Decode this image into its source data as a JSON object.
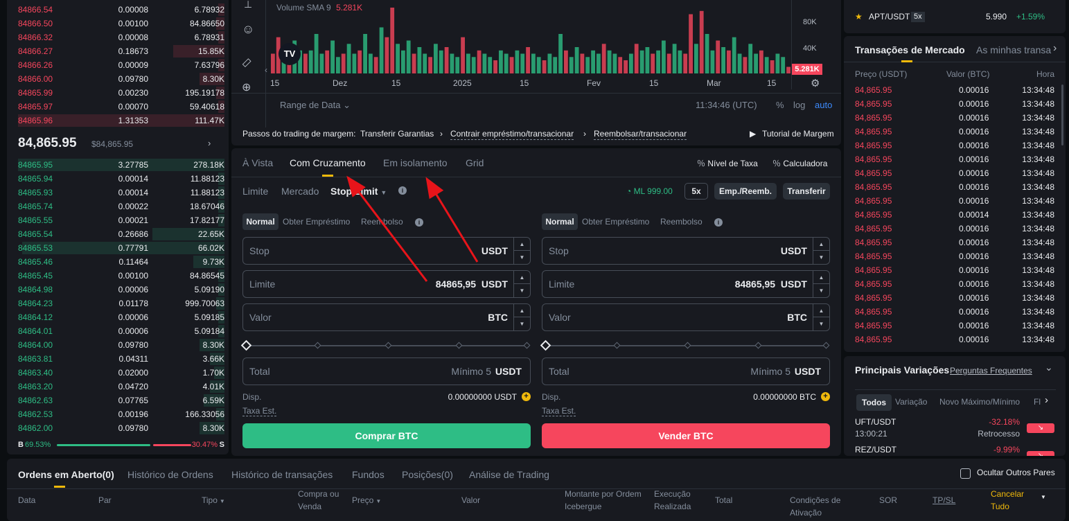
{
  "orderbook": {
    "asks": [
      {
        "price": "84866.54",
        "amount": "0.00008",
        "total": "6.78932",
        "depth": 0.03
      },
      {
        "price": "84866.50",
        "amount": "0.00100",
        "total": "84.86650",
        "depth": 0.04
      },
      {
        "price": "84866.32",
        "amount": "0.00008",
        "total": "6.78931",
        "depth": 0.03
      },
      {
        "price": "84866.27",
        "amount": "0.18673",
        "total": "15.85K",
        "depth": 0.25
      },
      {
        "price": "84866.26",
        "amount": "0.00009",
        "total": "7.63796",
        "depth": 0.03
      },
      {
        "price": "84866.00",
        "amount": "0.09780",
        "total": "8.30K",
        "depth": 0.12
      },
      {
        "price": "84865.99",
        "amount": "0.00230",
        "total": "195.19178",
        "depth": 0.04
      },
      {
        "price": "84865.97",
        "amount": "0.00070",
        "total": "59.40618",
        "depth": 0.03
      },
      {
        "price": "84865.96",
        "amount": "1.31353",
        "total": "111.47K",
        "depth": 1.0
      }
    ],
    "last_price": "84,865.95",
    "last_price_usd": "$84,865.95",
    "bids": [
      {
        "price": "84865.95",
        "amount": "3.27785",
        "total": "278.18K",
        "depth": 1.0
      },
      {
        "price": "84865.94",
        "amount": "0.00014",
        "total": "11.88123",
        "depth": 0.03
      },
      {
        "price": "84865.93",
        "amount": "0.00014",
        "total": "11.88123",
        "depth": 0.03
      },
      {
        "price": "84865.74",
        "amount": "0.00022",
        "total": "18.67046",
        "depth": 0.03
      },
      {
        "price": "84865.55",
        "amount": "0.00021",
        "total": "17.82177",
        "depth": 0.03
      },
      {
        "price": "84865.54",
        "amount": "0.26686",
        "total": "22.65K",
        "depth": 0.35
      },
      {
        "price": "84865.53",
        "amount": "0.77791",
        "total": "66.02K",
        "depth": 0.98
      },
      {
        "price": "84865.46",
        "amount": "0.11464",
        "total": "9.73K",
        "depth": 0.15
      },
      {
        "price": "84865.45",
        "amount": "0.00100",
        "total": "84.86545",
        "depth": 0.03
      },
      {
        "price": "84864.98",
        "amount": "0.00006",
        "total": "5.09190",
        "depth": 0.03
      },
      {
        "price": "84864.23",
        "amount": "0.01178",
        "total": "999.70063",
        "depth": 0.04
      },
      {
        "price": "84864.12",
        "amount": "0.00006",
        "total": "5.09185",
        "depth": 0.03
      },
      {
        "price": "84864.01",
        "amount": "0.00006",
        "total": "5.09184",
        "depth": 0.03
      },
      {
        "price": "84864.00",
        "amount": "0.09780",
        "total": "8.30K",
        "depth": 0.12
      },
      {
        "price": "84863.81",
        "amount": "0.04311",
        "total": "3.66K",
        "depth": 0.07
      },
      {
        "price": "84863.40",
        "amount": "0.02000",
        "total": "1.70K",
        "depth": 0.05
      },
      {
        "price": "84863.20",
        "amount": "0.04720",
        "total": "4.01K",
        "depth": 0.07
      },
      {
        "price": "84862.63",
        "amount": "0.07765",
        "total": "6.59K",
        "depth": 0.1
      },
      {
        "price": "84862.53",
        "amount": "0.00196",
        "total": "166.33056",
        "depth": 0.04
      },
      {
        "price": "84862.00",
        "amount": "0.09780",
        "total": "8.30K",
        "depth": 0.12
      }
    ],
    "buy_ratio_label": "B",
    "buy_ratio": "69.53%",
    "sell_ratio": "30.47%",
    "sell_ratio_label": "S",
    "buy_fraction": 0.6953
  },
  "chart": {
    "volume_label": "Volume SMA 9",
    "volume_value": "5.281K",
    "y_ticks": [
      "80K",
      "40K"
    ],
    "current_volume_badge": "5.281K",
    "x_ticks": [
      "15",
      "Dez",
      "15",
      "2025",
      "15",
      "Fev",
      "15",
      "Mar",
      "15"
    ],
    "range_label": "Range de Data",
    "time": "11:34:46 (UTC)",
    "percent_label": "%",
    "log_label": "log",
    "auto_label": "auto",
    "volume_bars": [
      {
        "v": 0.3,
        "c": "r"
      },
      {
        "v": 0.55,
        "c": "r"
      },
      {
        "v": 0.4,
        "c": "g"
      },
      {
        "v": 0.25,
        "c": "r"
      },
      {
        "v": 0.5,
        "c": "g"
      },
      {
        "v": 0.35,
        "c": "g"
      },
      {
        "v": 0.3,
        "c": "r"
      },
      {
        "v": 0.35,
        "c": "g"
      },
      {
        "v": 0.6,
        "c": "g"
      },
      {
        "v": 0.3,
        "c": "g"
      },
      {
        "v": 0.35,
        "c": "r"
      },
      {
        "v": 0.5,
        "c": "g"
      },
      {
        "v": 0.25,
        "c": "g"
      },
      {
        "v": 0.3,
        "c": "r"
      },
      {
        "v": 0.45,
        "c": "g"
      },
      {
        "v": 0.3,
        "c": "g"
      },
      {
        "v": 0.35,
        "c": "r"
      },
      {
        "v": 0.6,
        "c": "g"
      },
      {
        "v": 0.3,
        "c": "g"
      },
      {
        "v": 0.25,
        "c": "r"
      },
      {
        "v": 0.7,
        "c": "g"
      },
      {
        "v": 0.55,
        "c": "r"
      },
      {
        "v": 1.0,
        "c": "r"
      },
      {
        "v": 0.45,
        "c": "g"
      },
      {
        "v": 0.35,
        "c": "g"
      },
      {
        "v": 0.5,
        "c": "g"
      },
      {
        "v": 0.3,
        "c": "r"
      },
      {
        "v": 0.4,
        "c": "g"
      },
      {
        "v": 0.3,
        "c": "g"
      },
      {
        "v": 0.25,
        "c": "r"
      },
      {
        "v": 0.45,
        "c": "g"
      },
      {
        "v": 0.35,
        "c": "g"
      },
      {
        "v": 0.4,
        "c": "r"
      },
      {
        "v": 0.3,
        "c": "g"
      },
      {
        "v": 0.25,
        "c": "g"
      },
      {
        "v": 0.55,
        "c": "r"
      },
      {
        "v": 0.3,
        "c": "g"
      },
      {
        "v": 0.25,
        "c": "g"
      },
      {
        "v": 0.35,
        "c": "r"
      },
      {
        "v": 0.3,
        "c": "g"
      },
      {
        "v": 0.25,
        "c": "g"
      },
      {
        "v": 0.2,
        "c": "r"
      },
      {
        "v": 0.35,
        "c": "g"
      },
      {
        "v": 0.3,
        "c": "g"
      },
      {
        "v": 0.25,
        "c": "r"
      },
      {
        "v": 0.35,
        "c": "g"
      },
      {
        "v": 0.3,
        "c": "g"
      },
      {
        "v": 0.4,
        "c": "r"
      },
      {
        "v": 0.3,
        "c": "g"
      },
      {
        "v": 0.25,
        "c": "g"
      },
      {
        "v": 0.2,
        "c": "r"
      },
      {
        "v": 0.3,
        "c": "g"
      },
      {
        "v": 0.25,
        "c": "g"
      },
      {
        "v": 0.6,
        "c": "g"
      },
      {
        "v": 0.35,
        "c": "r"
      },
      {
        "v": 0.25,
        "c": "g"
      },
      {
        "v": 0.4,
        "c": "g"
      },
      {
        "v": 0.3,
        "c": "r"
      },
      {
        "v": 0.25,
        "c": "g"
      },
      {
        "v": 0.35,
        "c": "g"
      },
      {
        "v": 0.3,
        "c": "g"
      },
      {
        "v": 0.45,
        "c": "r"
      },
      {
        "v": 0.35,
        "c": "g"
      },
      {
        "v": 0.3,
        "c": "g"
      },
      {
        "v": 0.25,
        "c": "r"
      },
      {
        "v": 0.2,
        "c": "r"
      },
      {
        "v": 0.3,
        "c": "g"
      },
      {
        "v": 0.45,
        "c": "r"
      },
      {
        "v": 0.35,
        "c": "g"
      },
      {
        "v": 0.4,
        "c": "g"
      },
      {
        "v": 0.3,
        "c": "r"
      },
      {
        "v": 0.35,
        "c": "g"
      },
      {
        "v": 0.5,
        "c": "g"
      },
      {
        "v": 0.3,
        "c": "r"
      },
      {
        "v": 0.45,
        "c": "g"
      },
      {
        "v": 0.35,
        "c": "g"
      },
      {
        "v": 0.3,
        "c": "r"
      },
      {
        "v": 0.9,
        "c": "r"
      },
      {
        "v": 0.45,
        "c": "g"
      },
      {
        "v": 0.95,
        "c": "r"
      },
      {
        "v": 0.6,
        "c": "g"
      },
      {
        "v": 0.35,
        "c": "g"
      },
      {
        "v": 0.5,
        "c": "r"
      },
      {
        "v": 0.4,
        "c": "g"
      },
      {
        "v": 0.35,
        "c": "r"
      },
      {
        "v": 0.55,
        "c": "g"
      },
      {
        "v": 0.3,
        "c": "g"
      },
      {
        "v": 0.25,
        "c": "r"
      },
      {
        "v": 0.45,
        "c": "g"
      },
      {
        "v": 0.3,
        "c": "g"
      },
      {
        "v": 0.35,
        "c": "r"
      },
      {
        "v": 0.25,
        "c": "g"
      },
      {
        "v": 0.2,
        "c": "r"
      },
      {
        "v": 0.3,
        "c": "g"
      },
      {
        "v": 0.25,
        "c": "g"
      },
      {
        "v": 0.1,
        "c": "r"
      }
    ]
  },
  "margin_steps": {
    "title": "Passos do trading de margem:",
    "steps": [
      "Transferir Garantias",
      "Contrair empréstimo/transacionar",
      "Reembolsar/transacionar"
    ],
    "tutorial": "Tutorial de Margem"
  },
  "trade": {
    "tabs": [
      "À Vista",
      "Com Cruzamento",
      "Em isolamento",
      "Grid"
    ],
    "fee_level": "Nível de Taxa",
    "calculator": "Calculadora",
    "order_types": [
      "Limite",
      "Mercado",
      "Stop Limit"
    ],
    "ml_label": "ML 999.00",
    "leverage": "5x",
    "borrow_repay": "Emp./Reemb.",
    "transfer": "Transferir",
    "modes": [
      "Normal",
      "Obter Empréstimo",
      "Reembolso"
    ],
    "stop_label": "Stop",
    "limit_label": "Limite",
    "amount_label": "Valor",
    "total_label": "Total",
    "quote": "USDT",
    "base": "BTC",
    "limit_price": "84865,95",
    "min_label": "Mínimo 5",
    "avail_label": "Disp.",
    "fee_est_label": "Taxa Est.",
    "buy_avail": "0.00000000 USDT",
    "sell_avail": "0.00000000 BTC",
    "buy_button": "Comprar BTC",
    "sell_button": "Vender BTC"
  },
  "ticker": [
    {
      "pair": "APT/USDT",
      "lev": "5x",
      "price": "5.990",
      "change": "+1.59%"
    }
  ],
  "trades": {
    "tabs": [
      "Transações de Mercado",
      "As minhas transa"
    ],
    "headers": [
      "Preço (USDT)",
      "Valor (BTC)",
      "Hora"
    ],
    "rows": [
      [
        "84,865.95",
        "0.00016",
        "13:34:48"
      ],
      [
        "84,865.95",
        "0.00016",
        "13:34:48"
      ],
      [
        "84,865.95",
        "0.00016",
        "13:34:48"
      ],
      [
        "84,865.95",
        "0.00016",
        "13:34:48"
      ],
      [
        "84,865.95",
        "0.00016",
        "13:34:48"
      ],
      [
        "84,865.95",
        "0.00016",
        "13:34:48"
      ],
      [
        "84,865.95",
        "0.00016",
        "13:34:48"
      ],
      [
        "84,865.95",
        "0.00016",
        "13:34:48"
      ],
      [
        "84,865.95",
        "0.00016",
        "13:34:48"
      ],
      [
        "84,865.95",
        "0.00014",
        "13:34:48"
      ],
      [
        "84,865.95",
        "0.00016",
        "13:34:48"
      ],
      [
        "84,865.95",
        "0.00016",
        "13:34:48"
      ],
      [
        "84,865.95",
        "0.00016",
        "13:34:48"
      ],
      [
        "84,865.95",
        "0.00016",
        "13:34:48"
      ],
      [
        "84,865.95",
        "0.00016",
        "13:34:48"
      ],
      [
        "84,865.95",
        "0.00016",
        "13:34:48"
      ],
      [
        "84,865.95",
        "0.00016",
        "13:34:48"
      ],
      [
        "84,865.95",
        "0.00016",
        "13:34:48"
      ],
      [
        "84,865.95",
        "0.00016",
        "13:34:48"
      ]
    ]
  },
  "movers": {
    "title": "Principais Variações",
    "faq": "Perguntas Frequentes",
    "tabs": [
      "Todos",
      "Variação",
      "Novo Máximo/Mínimo",
      "Fl"
    ],
    "rows": [
      {
        "pair": "UFT/USDT",
        "time": "13:00:21",
        "change": "-32.18%",
        "desc": "Retrocesso"
      },
      {
        "pair": "REZ/USDT",
        "time": "",
        "change": "-9.99%",
        "desc": ""
      }
    ]
  },
  "bottom": {
    "tabs": [
      "Ordens em Aberto(0)",
      "Histórico de Ordens",
      "Histórico de transações",
      "Fundos",
      "Posições(0)",
      "Análise de Trading"
    ],
    "hide_pairs": "Ocultar Outros Pares",
    "cols": [
      "Data",
      "Par",
      "Tipo",
      "Compra ou Venda",
      "Preço",
      "Valor",
      "Montante por Ordem Icebergue",
      "Execução Realizada",
      "Total",
      "Condições de Ativação",
      "SOR",
      "TP/SL",
      "Cancelar Tudo"
    ]
  },
  "colors": {
    "up": "#2ebd85",
    "down": "#f6465d",
    "accent": "#f0b90b",
    "bg": "#181a20",
    "annotation": "#e8141a"
  }
}
